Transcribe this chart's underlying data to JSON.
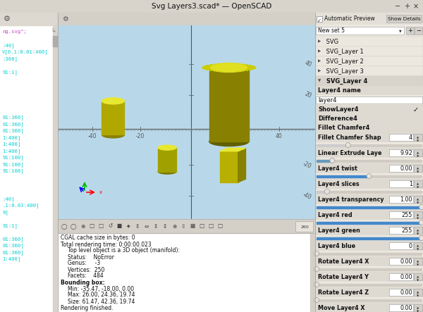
{
  "title": "Svg Layers3.scad* — OpenSCAD",
  "window_bg": "#d4d0c8",
  "left_panel_bg": "#ffffff",
  "right_panel_bg": "#ece8e0",
  "viewport_bg": "#b8d8e8",
  "console_bg": "#ffffff",
  "left_code_lines_top": [
    {
      "text": "ng.svg\";",
      "color": "#cc44cc"
    },
    {
      "text": "",
      "color": "#00cccc"
    },
    {
      "text": ":40]",
      "color": "#00cccc"
    },
    {
      "text": "V[0.1:0.01:400]",
      "color": "#00cccc"
    },
    {
      "text": ":360]",
      "color": "#00cccc"
    },
    {
      "text": "",
      "color": "#00cccc"
    },
    {
      "text": "91:1]",
      "color": "#00cccc"
    }
  ],
  "left_code_lines_mid": [
    {
      "text": "01:360]",
      "color": "#00cccc"
    },
    {
      "text": "01:360]",
      "color": "#00cccc"
    },
    {
      "text": "01:360]",
      "color": "#00cccc"
    },
    {
      "text": "1:400]",
      "color": "#00cccc"
    },
    {
      "text": "1:400]",
      "color": "#00cccc"
    },
    {
      "text": "1:400]",
      "color": "#00cccc"
    },
    {
      "text": "91:100]",
      "color": "#00cccc"
    },
    {
      "text": "91:100]",
      "color": "#00cccc"
    },
    {
      "text": "91:100]",
      "color": "#00cccc"
    }
  ],
  "left_code_lines_bot": [
    {
      "text": ":40]",
      "color": "#00cccc"
    },
    {
      "text": ".1:0.01:400]",
      "color": "#00cccc"
    },
    {
      "text": "9]",
      "color": "#00cccc"
    },
    {
      "text": "",
      "color": "#00cccc"
    },
    {
      "text": "91:1]",
      "color": "#00cccc"
    },
    {
      "text": "",
      "color": "#00cccc"
    },
    {
      "text": "01:360]",
      "color": "#00cccc"
    },
    {
      "text": "01:360]",
      "color": "#00cccc"
    },
    {
      "text": "01:360]",
      "color": "#00cccc"
    },
    {
      "text": "1:400]",
      "color": "#00cccc"
    }
  ],
  "right_items": [
    {
      "type": "topbar",
      "check": "Automatic Preview",
      "btn": "Show Details"
    },
    {
      "type": "dropdown",
      "text": "New set 5"
    },
    {
      "type": "tree",
      "text": " SVG",
      "arrow": "▶",
      "selected": false
    },
    {
      "type": "tree",
      "text": " SVG_Layer 1",
      "arrow": "▶",
      "selected": false
    },
    {
      "type": "tree",
      "text": " SVG_Layer 2",
      "arrow": "▶",
      "selected": false
    },
    {
      "type": "tree",
      "text": " SVG_Layer 3",
      "arrow": "▶",
      "selected": false
    },
    {
      "type": "tree",
      "text": " SVG_Layer 4",
      "arrow": "▼",
      "selected": true
    },
    {
      "type": "section",
      "text": "Layer4 name"
    },
    {
      "type": "input",
      "text": "layer4"
    },
    {
      "type": "checkfield",
      "label": "ShowLayer4",
      "checked": true
    },
    {
      "type": "field",
      "label": "Difference4"
    },
    {
      "type": "field",
      "label": "Fillet Chamfer4"
    },
    {
      "type": "spinrow",
      "label": "Fillet Chamfer Shap",
      "value": "4"
    },
    {
      "type": "slider",
      "filled": 0.3,
      "color": "#cccccc"
    },
    {
      "type": "spinrow",
      "label": "Linear Extrude Laye",
      "value": "9.92"
    },
    {
      "type": "slider",
      "filled": 0.15,
      "color": "#6699bb"
    },
    {
      "type": "spinrow",
      "label": "Layer4 twist",
      "value": "0.00"
    },
    {
      "type": "slider",
      "filled": 0.5,
      "color": "#4488cc"
    },
    {
      "type": "spinrow",
      "label": "Layer4 slices",
      "value": "1"
    },
    {
      "type": "slider",
      "filled": 0.1,
      "color": "#cccccc"
    },
    {
      "type": "spinrow",
      "label": "Layer4 transparency",
      "value": "1.00"
    },
    {
      "type": "slider",
      "filled": 1.0,
      "color": "#4488cc"
    },
    {
      "type": "spinrow",
      "label": "Layer4 red",
      "value": "255"
    },
    {
      "type": "slider",
      "filled": 1.0,
      "color": "#4488cc"
    },
    {
      "type": "spinrow",
      "label": "Layer4 green",
      "value": "255"
    },
    {
      "type": "slider",
      "filled": 1.0,
      "color": "#4488cc"
    },
    {
      "type": "spinrow",
      "label": "Layer4 blue",
      "value": "0"
    },
    {
      "type": "slider",
      "filled": 0.0,
      "color": "#cccccc"
    },
    {
      "type": "spinrow",
      "label": "Rotate Layer4 X",
      "value": "0.00"
    },
    {
      "type": "slider",
      "filled": 0.0,
      "color": "#cccccc"
    },
    {
      "type": "spinrow",
      "label": "Rotate Layer4 Y",
      "value": "0.00"
    },
    {
      "type": "slider",
      "filled": 0.0,
      "color": "#cccccc"
    },
    {
      "type": "spinrow",
      "label": "Rotate Layer4 Z",
      "value": "0.00"
    },
    {
      "type": "slider",
      "filled": 0.0,
      "color": "#cccccc"
    },
    {
      "type": "spinrow",
      "label": "Move Layer4 X",
      "value": "0.00"
    },
    {
      "type": "slider",
      "filled": 0.5,
      "color": "#4488cc"
    }
  ],
  "console_lines": [
    {
      "text": "CGAL cache size in bytes: 0",
      "bold": false,
      "indent": 0
    },
    {
      "text": "Total rendering time: 0:00:00.023",
      "bold": false,
      "indent": 0
    },
    {
      "text": "Top level object is a 3D object (manifold):",
      "bold": false,
      "indent": 1
    },
    {
      "text": "Status:    NoError",
      "bold": false,
      "indent": 1
    },
    {
      "text": "Genus:     -3",
      "bold": false,
      "indent": 1
    },
    {
      "text": "Vertices:  250",
      "bold": false,
      "indent": 1
    },
    {
      "text": "Facets:    484",
      "bold": false,
      "indent": 1
    },
    {
      "text": "Bounding box:",
      "bold": true,
      "indent": 0
    },
    {
      "text": "Min: -35.47, -18.00, 0.00",
      "bold": false,
      "indent": 1
    },
    {
      "text": "Max: 26.00, 24.36, 19.74",
      "bold": false,
      "indent": 1
    },
    {
      "text": "Size: 61.47, 42.36, 19.74",
      "bold": false,
      "indent": 1
    },
    {
      "text": "Rendering finished.",
      "bold": false,
      "indent": 0
    }
  ]
}
